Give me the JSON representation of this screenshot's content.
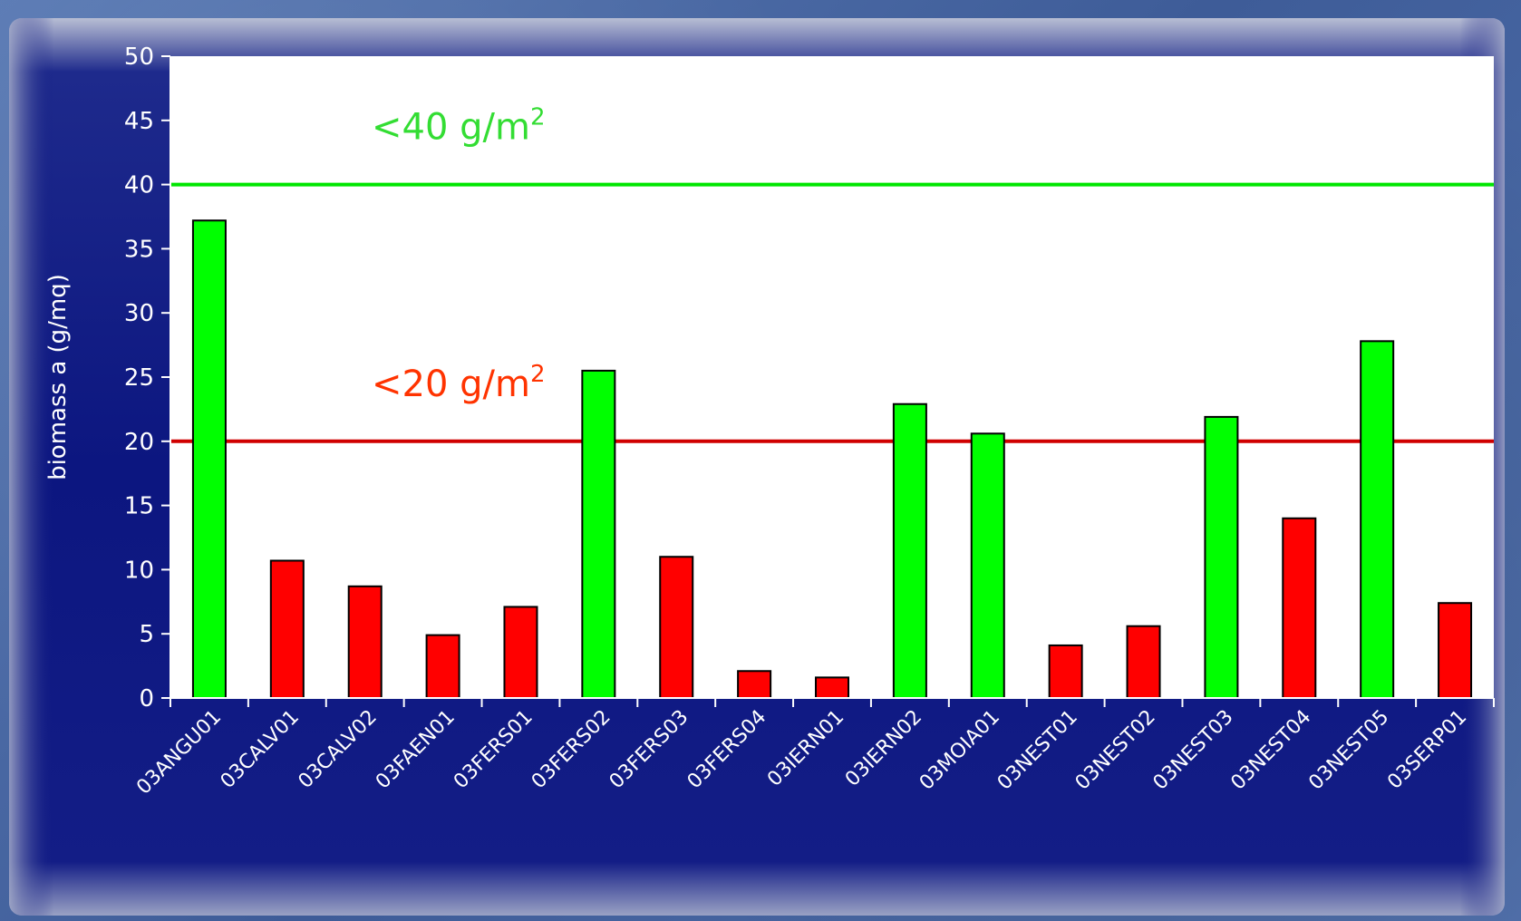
{
  "chart_data": {
    "type": "bar",
    "ylabel": "biomass a (g/mq)",
    "ylim": [
      0,
      50
    ],
    "yticks": [
      0,
      5,
      10,
      15,
      20,
      25,
      30,
      35,
      40,
      45,
      50
    ],
    "grid": false,
    "categories": [
      "03ANGU01",
      "03CALV01",
      "03CALV02",
      "03FAEN01",
      "03FERS01",
      "03FERS02",
      "03FERS03",
      "03FERS04",
      "03IERN01",
      "03IERN02",
      "03MOIA01",
      "03NEST01",
      "03NEST02",
      "03NEST03",
      "03NEST04",
      "03NEST05",
      "03SERP01"
    ],
    "values": [
      37.2,
      10.7,
      8.7,
      4.9,
      7.1,
      25.5,
      11.0,
      2.1,
      1.6,
      22.9,
      20.6,
      4.1,
      5.6,
      21.9,
      14.0,
      27.8,
      7.4
    ],
    "bar_colors": {
      "above_threshold": "#00ff00",
      "below_threshold": "#ff0000"
    },
    "threshold_lines": [
      {
        "value": 40,
        "color": "#00e600",
        "label": "<40 g/m",
        "sup": "2",
        "label_color": "#33dd33"
      },
      {
        "value": 20,
        "color": "#d00000",
        "label": "<20 g/m",
        "sup": "2",
        "label_color": "#ff3300"
      }
    ]
  }
}
